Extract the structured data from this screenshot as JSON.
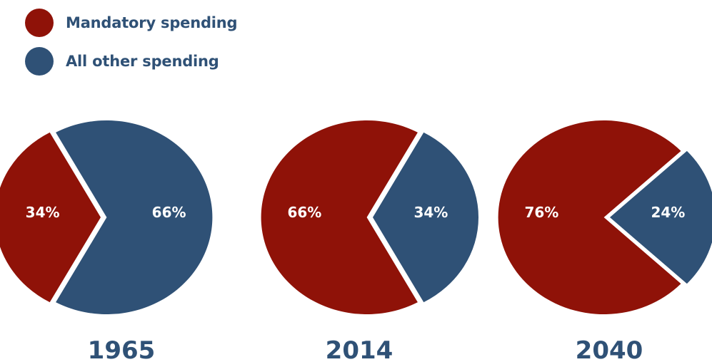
{
  "legend": {
    "position": "top-left",
    "items": [
      {
        "label": "Mandatory spending",
        "color": "#8f1208"
      },
      {
        "label": "All other spending",
        "color": "#2f5176"
      }
    ]
  },
  "chart_data": [
    {
      "type": "pie",
      "title": "1965",
      "categories": [
        "Mandatory spending",
        "All other spending"
      ],
      "values": [
        34,
        66
      ],
      "labels": [
        "34%",
        "66%"
      ],
      "colors": [
        "#8f1208",
        "#2f5176"
      ]
    },
    {
      "type": "pie",
      "title": "2014",
      "categories": [
        "Mandatory spending",
        "All other spending"
      ],
      "values": [
        66,
        34
      ],
      "labels": [
        "66%",
        "34%"
      ],
      "colors": [
        "#8f1208",
        "#2f5176"
      ]
    },
    {
      "type": "pie",
      "title": "2040",
      "categories": [
        "Mandatory spending",
        "All other spending"
      ],
      "values": [
        76,
        24
      ],
      "labels": [
        "76%",
        "24%"
      ],
      "colors": [
        "#8f1208",
        "#2f5176"
      ]
    }
  ]
}
